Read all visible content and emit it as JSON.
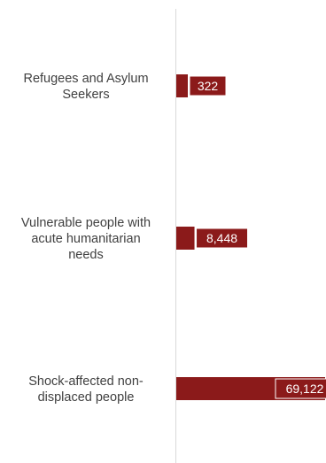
{
  "chart_data": {
    "type": "bar",
    "orientation": "horizontal",
    "categories": [
      [
        "Refugees and Asylum",
        "Seekers"
      ],
      [
        "Vulnerable people with",
        "acute humanitarian",
        "needs"
      ],
      [
        "Shock-affected non-",
        "displaced people"
      ]
    ],
    "values": [
      322,
      8448,
      69122
    ],
    "value_labels": [
      "322",
      "8,448",
      "69,122"
    ],
    "title": "",
    "xlabel": "",
    "ylabel": "",
    "grid": false,
    "legend": "none",
    "colors": {
      "bar": "#8b1a1a",
      "label_box": "#8b1a1a",
      "label_text": "#ffffff",
      "category_text": "#404040",
      "axis_line": "#d9d9d9"
    }
  }
}
